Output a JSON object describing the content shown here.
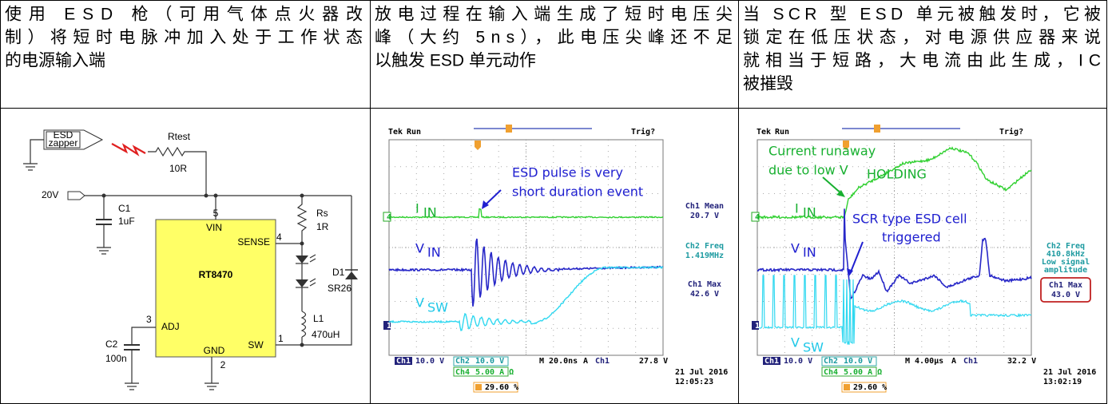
{
  "table": {
    "rows": [
      [
        {
          "lines": [
            "使用 ESD 枪（可用气体点火器改",
            "制）将短时电脉冲加入处于工作状态",
            "的电源输入端"
          ]
        },
        {
          "lines": [
            "放电过程在输入端生成了短时电压尖",
            "峰（大约 5ns），此电压尖峰还不足",
            "以触发 ESD 单元动作"
          ]
        },
        {
          "lines": [
            "当 SCR 型 ESD 单元被触发时，它被",
            "锁定在低压状态，对电源供应器来说",
            "就相当于短路，大电流由此生成，IC",
            "被摧毁"
          ]
        }
      ]
    ]
  },
  "circuit": {
    "labels": [
      "ESD",
      "zapper",
      "Rtest",
      "10R",
      "20V",
      "C1",
      "1uF",
      "5",
      "VIN",
      "SENSE",
      "4",
      "Rs",
      "1R",
      "RT8470",
      "D1",
      "SR26",
      "L1",
      "470uH",
      "3",
      "ADJ",
      "C2",
      "100n",
      "GND",
      "2",
      "SW",
      "1"
    ]
  },
  "scope1": {
    "labels": [
      "Tek",
      "Run",
      "Trig?",
      "ESD pulse is very",
      "short duration event",
      "I",
      "IN",
      "V",
      "IN",
      "V",
      "SW",
      "Ch1 Mean",
      "20.7 V",
      "Ch2 Freq",
      "1.419MHz",
      "Ch1 Max",
      "42.6 V",
      "Ch1",
      "10.0 V",
      "Ch2",
      "10.0 V",
      "M 20.0ns",
      "A",
      "Ch1",
      "27.8 V",
      "Ch4",
      "5.00 A Ω",
      "29.60 %",
      "21 Jul  2016",
      "12:05:23",
      "4",
      "1"
    ]
  },
  "scope2": {
    "labels": [
      "Tek",
      "Run",
      "Trig?",
      "Current runaway",
      "due to low V",
      "HOLDING",
      "I",
      "IN",
      "V",
      "IN",
      "V",
      "SW",
      "SCR type ESD cell",
      "triggered",
      "Ch2 Freq",
      "410.8kHz",
      "Low signal",
      "amplitude",
      "Ch1 Max",
      "43.0 V",
      "Ch1",
      "10.0 V",
      "Ch2",
      "10.0 V",
      "M 4.00µs",
      "A",
      "Ch1",
      "32.2 V",
      "Ch4",
      "5.00 A Ω",
      "29.60 %",
      "21 Jul  2016",
      "13:02:19",
      "4",
      "1"
    ]
  }
}
